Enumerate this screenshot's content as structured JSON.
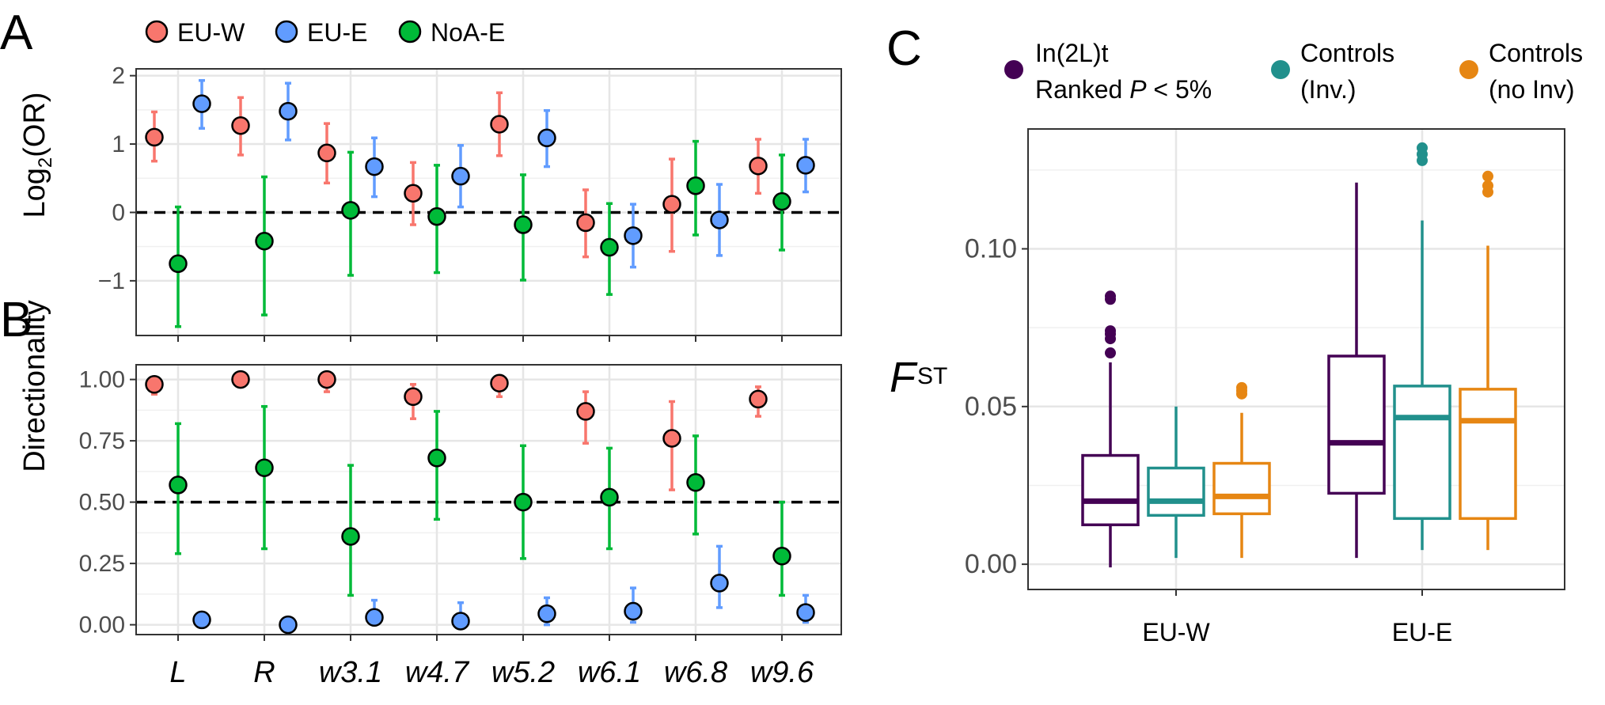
{
  "panels": {
    "a": "A",
    "b": "B",
    "c": "C"
  },
  "colors": {
    "EU-W": "#F8766D",
    "EU-E": "#619CFF",
    "NoA-E": "#00BA38",
    "inv": "#440154",
    "ctrl_inv": "#21908C",
    "ctrl_noinv": "#E68613"
  },
  "legend_ab": [
    "EU-W",
    "EU-E",
    "NoA-E"
  ],
  "legend_c": [
    {
      "line1": "In(2L)t",
      "line2_pre": "Ranked ",
      "line2_p": "P",
      "line2_post": " < 5%"
    },
    {
      "line1": "Controls",
      "line2_pre": "(Inv.)",
      "line2_p": "",
      "line2_post": ""
    },
    {
      "line1": "Controls",
      "line2_pre": "(no Inv)",
      "line2_p": "",
      "line2_post": ""
    }
  ],
  "ylabel_a_pre": "Log",
  "ylabel_a_sub": "2",
  "ylabel_a_post": "(OR)",
  "ylabel_b": "Directionality",
  "ylabel_c_main": "F",
  "ylabel_c_sub": "ST",
  "chart_data": [
    {
      "type": "scatter",
      "panel": "A",
      "categories": [
        "L",
        "R",
        "w3.1",
        "w4.7",
        "w5.2",
        "w6.1",
        "w6.8",
        "w9.6"
      ],
      "ylim": [
        -1.8,
        2.1
      ],
      "yticks": [
        2,
        1,
        0,
        -1
      ],
      "ytick_labels": [
        "2",
        "1",
        "0",
        "−1"
      ],
      "reference_line": 0,
      "series": [
        {
          "name": "EU-W",
          "values": [
            1.1,
            1.27,
            0.87,
            0.28,
            1.29,
            -0.15,
            0.12,
            0.68
          ],
          "lo": [
            0.75,
            0.84,
            0.43,
            -0.18,
            0.83,
            -0.65,
            -0.57,
            0.28
          ],
          "hi": [
            1.47,
            1.68,
            1.3,
            0.73,
            1.75,
            0.33,
            0.78,
            1.07
          ]
        },
        {
          "name": "EU-E",
          "values": [
            1.59,
            1.48,
            0.67,
            0.53,
            1.09,
            -0.34,
            -0.11,
            0.69
          ],
          "lo": [
            1.23,
            1.06,
            0.23,
            0.08,
            0.67,
            -0.8,
            -0.63,
            0.3
          ],
          "hi": [
            1.93,
            1.89,
            1.09,
            0.98,
            1.49,
            0.12,
            0.41,
            1.07
          ]
        },
        {
          "name": "NoA-E",
          "values": [
            -0.75,
            -0.42,
            0.03,
            -0.06,
            -0.18,
            -0.51,
            0.39,
            0.16
          ],
          "lo": [
            -1.67,
            -1.5,
            -0.92,
            -0.88,
            -0.99,
            -1.2,
            -0.33,
            -0.55
          ],
          "hi": [
            0.08,
            0.52,
            0.88,
            0.69,
            0.55,
            0.13,
            1.04,
            0.84
          ]
        }
      ]
    },
    {
      "type": "scatter",
      "panel": "B",
      "categories": [
        "L",
        "R",
        "w3.1",
        "w4.7",
        "w5.2",
        "w6.1",
        "w6.8",
        "w9.6"
      ],
      "ylim": [
        -0.04,
        1.06
      ],
      "yticks": [
        1.0,
        0.75,
        0.5,
        0.25,
        0.0
      ],
      "ytick_labels": [
        "1.00",
        "0.75",
        "0.50",
        "0.25",
        "0.00"
      ],
      "reference_line": 0.5,
      "series": [
        {
          "name": "EU-W",
          "values": [
            0.98,
            1.0,
            1.0,
            0.93,
            0.985,
            0.87,
            0.76,
            0.92
          ],
          "lo": [
            0.94,
            0.98,
            0.95,
            0.84,
            0.93,
            0.74,
            0.55,
            0.85
          ],
          "hi": [
            1.0,
            1.0,
            1.0,
            0.98,
            1.0,
            0.95,
            0.91,
            0.97
          ]
        },
        {
          "name": "EU-E",
          "values": [
            0.02,
            0.0,
            0.03,
            0.015,
            0.045,
            0.055,
            0.17,
            0.05
          ],
          "lo": [
            0.0,
            0.0,
            0.0,
            0.0,
            0.0,
            0.01,
            0.07,
            0.01
          ],
          "hi": [
            0.05,
            0.03,
            0.1,
            0.09,
            0.11,
            0.15,
            0.32,
            0.12
          ]
        },
        {
          "name": "NoA-E",
          "values": [
            0.57,
            0.64,
            0.36,
            0.68,
            0.5,
            0.52,
            0.58,
            0.28
          ],
          "lo": [
            0.29,
            0.31,
            0.12,
            0.43,
            0.27,
            0.31,
            0.37,
            0.12
          ],
          "hi": [
            0.82,
            0.89,
            0.65,
            0.87,
            0.73,
            0.72,
            0.77,
            0.5
          ]
        }
      ]
    },
    {
      "type": "box",
      "panel": "C",
      "categories": [
        "EU-W",
        "EU-E"
      ],
      "ylim": [
        -0.008,
        0.138
      ],
      "yticks": [
        0.0,
        0.05,
        0.1
      ],
      "ytick_labels": [
        "0.00",
        "0.05",
        "0.10"
      ],
      "series": [
        {
          "name": "In(2L)t Ranked P < 5%",
          "boxes": [
            {
              "min": -0.001,
              "q1": 0.0125,
              "median": 0.02,
              "q3": 0.0345,
              "max": 0.064,
              "outliers": [
                0.067,
                0.0715,
                0.073,
                0.074,
                0.084,
                0.085
              ]
            },
            {
              "min": 0.002,
              "q1": 0.0225,
              "median": 0.0385,
              "q3": 0.066,
              "max": 0.121,
              "outliers": []
            }
          ]
        },
        {
          "name": "Controls (Inv.)",
          "boxes": [
            {
              "min": 0.002,
              "q1": 0.0155,
              "median": 0.02,
              "q3": 0.0305,
              "max": 0.05,
              "outliers": []
            },
            {
              "min": 0.0045,
              "q1": 0.0145,
              "median": 0.0465,
              "q3": 0.0565,
              "max": 0.109,
              "outliers": [
                0.128,
                0.13,
                0.132
              ]
            }
          ]
        },
        {
          "name": "Controls (no Inv)",
          "boxes": [
            {
              "min": 0.002,
              "q1": 0.016,
              "median": 0.0215,
              "q3": 0.032,
              "max": 0.048,
              "outliers": [
                0.054,
                0.055,
                0.056
              ]
            },
            {
              "min": 0.0045,
              "q1": 0.0145,
              "median": 0.0455,
              "q3": 0.0555,
              "max": 0.101,
              "outliers": [
                0.118,
                0.12,
                0.123
              ]
            }
          ]
        }
      ]
    }
  ]
}
